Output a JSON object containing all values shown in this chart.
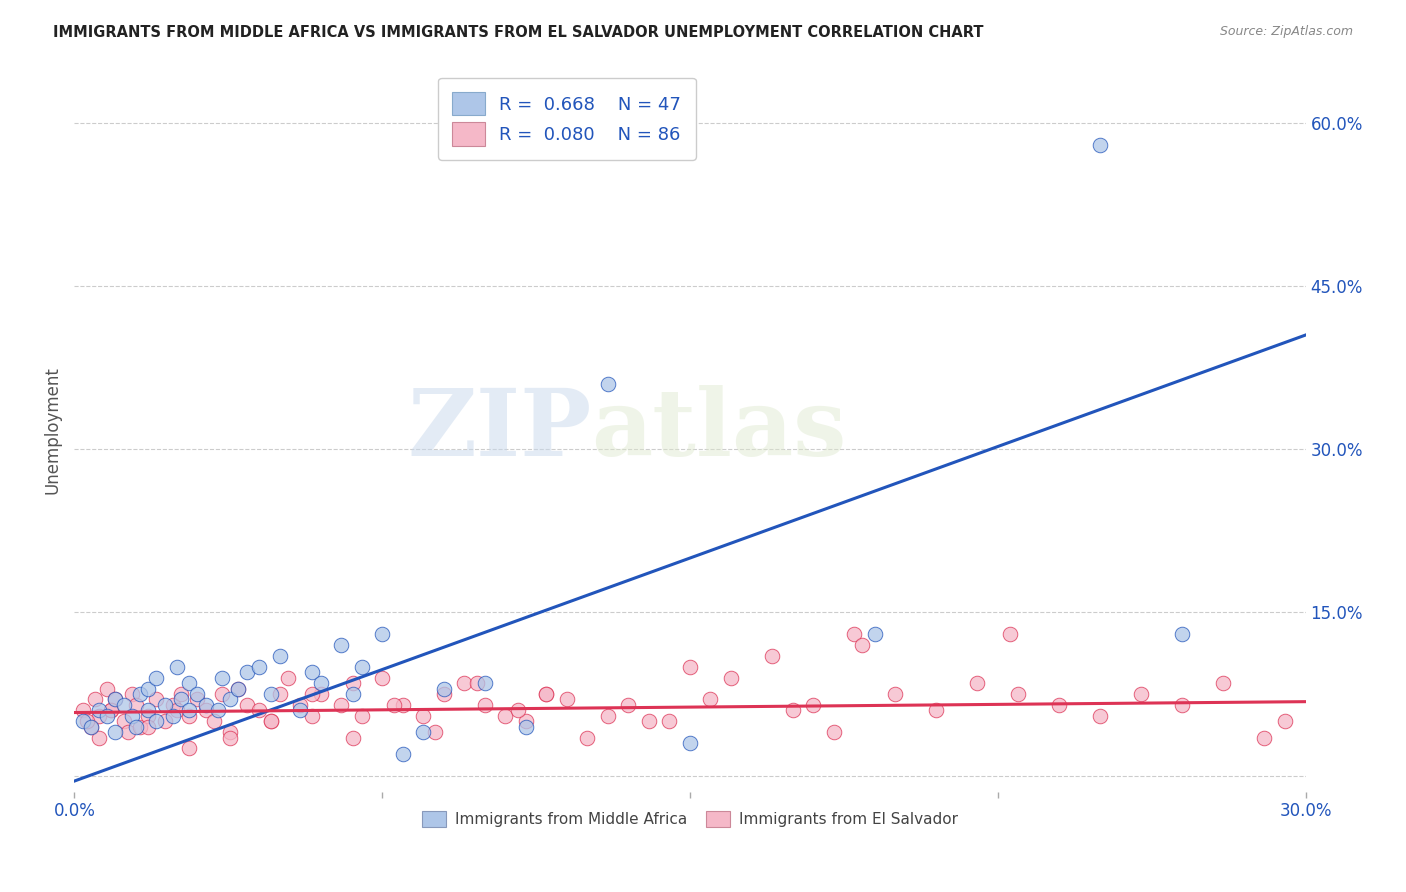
{
  "title": "IMMIGRANTS FROM MIDDLE AFRICA VS IMMIGRANTS FROM EL SALVADOR UNEMPLOYMENT CORRELATION CHART",
  "source": "Source: ZipAtlas.com",
  "ylabel": "Unemployment",
  "blue_R": 0.668,
  "blue_N": 47,
  "pink_R": 0.08,
  "pink_N": 86,
  "blue_color": "#aec6e8",
  "pink_color": "#f5b8c8",
  "blue_line_color": "#2255bb",
  "pink_line_color": "#dd3355",
  "watermark_zip": "ZIP",
  "watermark_atlas": "atlas",
  "legend_label_blue": "Immigrants from Middle Africa",
  "legend_label_pink": "Immigrants from El Salvador",
  "xlim": [
    0.0,
    0.3
  ],
  "ylim": [
    -0.015,
    0.65
  ],
  "yticks": [
    0.0,
    0.15,
    0.3,
    0.45,
    0.6
  ],
  "ytick_labels_right": [
    "",
    "15.0%",
    "30.0%",
    "45.0%",
    "60.0%"
  ],
  "xticks": [
    0.0,
    0.075,
    0.15,
    0.225,
    0.3
  ],
  "xtick_labels": [
    "0.0%",
    "",
    "",
    "",
    "30.0%"
  ],
  "blue_line_x0": 0.0,
  "blue_line_y0": -0.005,
  "blue_line_x1": 0.3,
  "blue_line_y1": 0.405,
  "pink_line_x0": 0.0,
  "pink_line_y0": 0.058,
  "pink_line_x1": 0.3,
  "pink_line_y1": 0.068,
  "blue_scatter_x": [
    0.002,
    0.004,
    0.006,
    0.008,
    0.01,
    0.01,
    0.012,
    0.014,
    0.015,
    0.016,
    0.018,
    0.018,
    0.02,
    0.02,
    0.022,
    0.024,
    0.025,
    0.026,
    0.028,
    0.028,
    0.03,
    0.032,
    0.035,
    0.036,
    0.038,
    0.04,
    0.042,
    0.045,
    0.048,
    0.05,
    0.055,
    0.058,
    0.06,
    0.065,
    0.068,
    0.07,
    0.075,
    0.08,
    0.085,
    0.09,
    0.1,
    0.11,
    0.13,
    0.15,
    0.195,
    0.25,
    0.27
  ],
  "blue_scatter_y": [
    0.05,
    0.045,
    0.06,
    0.055,
    0.04,
    0.07,
    0.065,
    0.055,
    0.045,
    0.075,
    0.06,
    0.08,
    0.05,
    0.09,
    0.065,
    0.055,
    0.1,
    0.07,
    0.06,
    0.085,
    0.075,
    0.065,
    0.06,
    0.09,
    0.07,
    0.08,
    0.095,
    0.1,
    0.075,
    0.11,
    0.06,
    0.095,
    0.085,
    0.12,
    0.075,
    0.1,
    0.13,
    0.02,
    0.04,
    0.08,
    0.085,
    0.045,
    0.36,
    0.03,
    0.13,
    0.58,
    0.13
  ],
  "pink_scatter_x": [
    0.002,
    0.004,
    0.005,
    0.006,
    0.008,
    0.009,
    0.01,
    0.012,
    0.013,
    0.014,
    0.015,
    0.016,
    0.018,
    0.02,
    0.022,
    0.024,
    0.025,
    0.026,
    0.028,
    0.03,
    0.032,
    0.034,
    0.036,
    0.038,
    0.04,
    0.042,
    0.045,
    0.048,
    0.05,
    0.052,
    0.055,
    0.058,
    0.06,
    0.065,
    0.068,
    0.07,
    0.075,
    0.08,
    0.085,
    0.09,
    0.095,
    0.1,
    0.105,
    0.11,
    0.115,
    0.12,
    0.13,
    0.14,
    0.15,
    0.16,
    0.17,
    0.18,
    0.19,
    0.2,
    0.21,
    0.22,
    0.23,
    0.24,
    0.25,
    0.26,
    0.27,
    0.28,
    0.29,
    0.295,
    0.175,
    0.185,
    0.155,
    0.145,
    0.135,
    0.125,
    0.115,
    0.108,
    0.098,
    0.088,
    0.078,
    0.068,
    0.058,
    0.048,
    0.038,
    0.028,
    0.018,
    0.009,
    0.006,
    0.003,
    0.192,
    0.228
  ],
  "pink_scatter_y": [
    0.06,
    0.045,
    0.07,
    0.055,
    0.08,
    0.06,
    0.07,
    0.05,
    0.04,
    0.075,
    0.065,
    0.045,
    0.055,
    0.07,
    0.05,
    0.065,
    0.06,
    0.075,
    0.055,
    0.07,
    0.06,
    0.05,
    0.075,
    0.04,
    0.08,
    0.065,
    0.06,
    0.05,
    0.075,
    0.09,
    0.065,
    0.055,
    0.075,
    0.065,
    0.085,
    0.055,
    0.09,
    0.065,
    0.055,
    0.075,
    0.085,
    0.065,
    0.055,
    0.05,
    0.075,
    0.07,
    0.055,
    0.05,
    0.1,
    0.09,
    0.11,
    0.065,
    0.13,
    0.075,
    0.06,
    0.085,
    0.075,
    0.065,
    0.055,
    0.075,
    0.065,
    0.085,
    0.035,
    0.05,
    0.06,
    0.04,
    0.07,
    0.05,
    0.065,
    0.035,
    0.075,
    0.06,
    0.085,
    0.04,
    0.065,
    0.035,
    0.075,
    0.05,
    0.035,
    0.025,
    0.045,
    0.06,
    0.035,
    0.05,
    0.12,
    0.13
  ]
}
